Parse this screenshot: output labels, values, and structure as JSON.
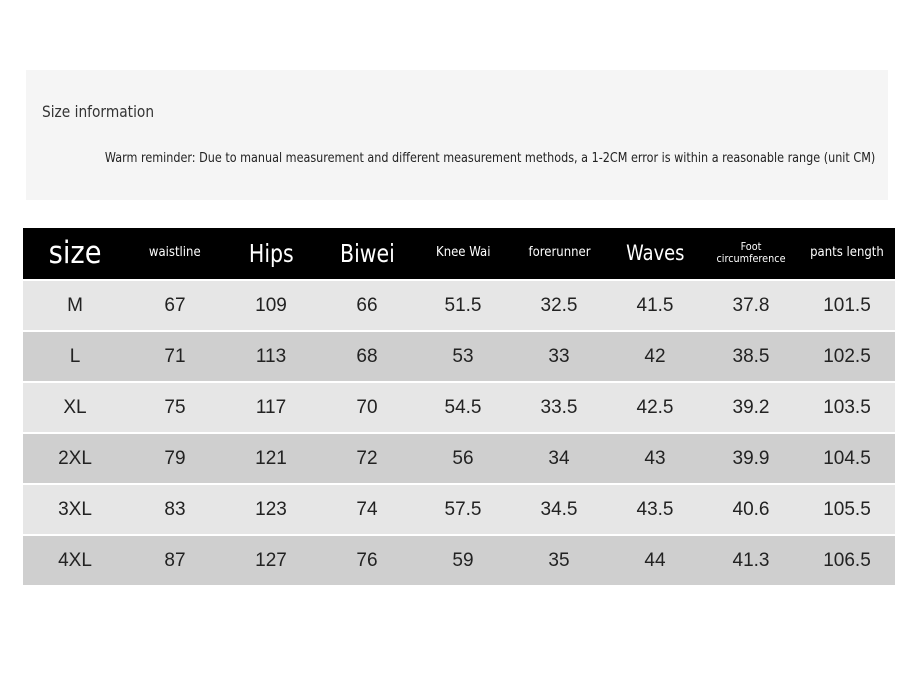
{
  "info": {
    "title": "Size information",
    "reminder": "Warm reminder: Due to manual measurement and different measurement methods, a 1-2CM error is within a reasonable range (unit CM)"
  },
  "table": {
    "headers": [
      "size",
      "waistline",
      "Hips",
      "Biwei",
      "Knee Wai",
      "forerunner",
      "Waves",
      "Foot circumference",
      "pants length"
    ],
    "rows": [
      [
        "M",
        "67",
        "109",
        "66",
        "51.5",
        "32.5",
        "41.5",
        "37.8",
        "101.5"
      ],
      [
        "L",
        "71",
        "113",
        "68",
        "53",
        "33",
        "42",
        "38.5",
        "102.5"
      ],
      [
        "XL",
        "75",
        "117",
        "70",
        "54.5",
        "33.5",
        "42.5",
        "39.2",
        "103.5"
      ],
      [
        "2XL",
        "79",
        "121",
        "72",
        "56",
        "34",
        "43",
        "39.9",
        "104.5"
      ],
      [
        "3XL",
        "83",
        "123",
        "74",
        "57.5",
        "34.5",
        "43.5",
        "40.6",
        "105.5"
      ],
      [
        "4XL",
        "87",
        "127",
        "76",
        "59",
        "35",
        "44",
        "41.3",
        "106.5"
      ]
    ]
  },
  "colors": {
    "header_bg": "#000000",
    "header_text": "#ffffff",
    "row_light": "#e6e6e6",
    "row_dark": "#cfcfcf",
    "info_bg": "#f5f5f5"
  }
}
